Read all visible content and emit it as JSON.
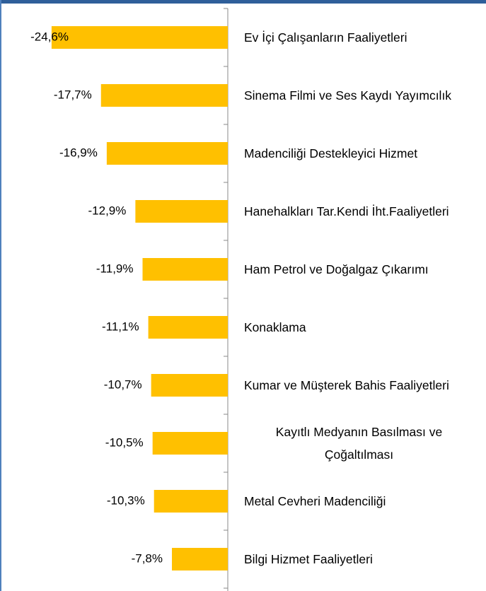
{
  "chart_data": {
    "type": "bar",
    "orientation": "horizontal",
    "categories": [
      "Ev İçi Çalışanların Faaliyetleri",
      "Sinema Filmi ve Ses Kaydı Yayımcılık",
      "Madenciliği Destekleyici Hizmet",
      "Hanehalkları Tar.Kendi İht.Faaliyetleri",
      "Ham Petrol ve Doğalgaz Çıkarımı",
      "Konaklama",
      "Kumar ve Müşterek Bahis Faaliyetleri",
      "Kayıtlı Medyanın Basılması ve Çoğaltılması",
      "Metal Cevheri Madenciliği",
      "Bilgi Hizmet Faaliyetleri"
    ],
    "values": [
      -24.6,
      -17.7,
      -16.9,
      -12.9,
      -11.9,
      -11.1,
      -10.7,
      -10.5,
      -10.3,
      -7.8
    ],
    "value_labels": [
      "-24,6%",
      "-17,7%",
      "-16,9%",
      "-12,9%",
      "-11,9%",
      "-11,1%",
      "-10,7%",
      "-10,5%",
      "-10,3%",
      "-7,8%"
    ],
    "color": "#ffc000",
    "xlim": [
      -31.8,
      0
    ]
  }
}
